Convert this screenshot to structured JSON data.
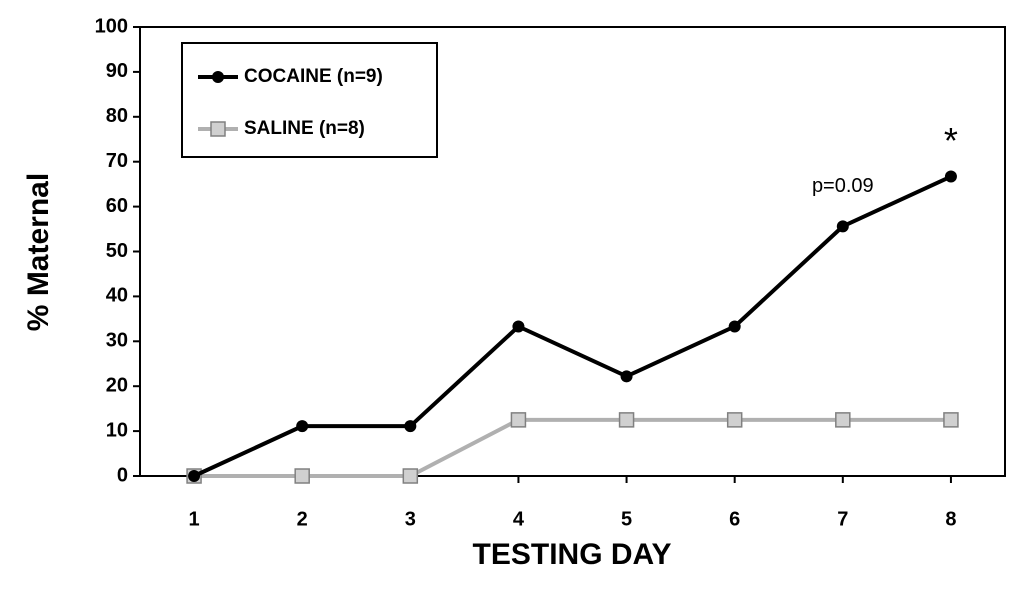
{
  "chart_data": {
    "type": "line",
    "x": [
      1,
      2,
      3,
      4,
      5,
      6,
      7,
      8
    ],
    "xlim": [
      0.5,
      8.5
    ],
    "xticks": [
      1,
      2,
      3,
      4,
      5,
      6,
      7,
      8
    ],
    "ylim": [
      0,
      100
    ],
    "yticks": [
      0,
      10,
      20,
      30,
      40,
      50,
      60,
      70,
      80,
      90,
      100
    ],
    "xlabel": "TESTING DAY",
    "ylabel": "% Maternal",
    "series": [
      {
        "name": "COCAINE (n=9)",
        "color": "#000000",
        "marker": "circle",
        "values": [
          0,
          11.1,
          11.1,
          33.3,
          22.2,
          33.3,
          55.6,
          66.7
        ]
      },
      {
        "name": "SALINE (n=8)",
        "color": "#b0b0b0",
        "marker": "square",
        "values": [
          0,
          0,
          0,
          12.5,
          12.5,
          12.5,
          12.5,
          12.5
        ]
      }
    ],
    "annotations": [
      "p=0.09",
      "*"
    ]
  }
}
